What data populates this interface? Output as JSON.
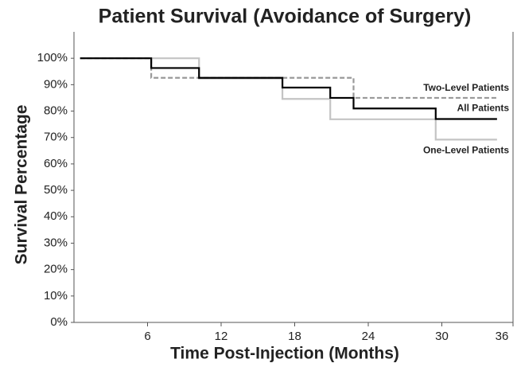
{
  "chart_data": {
    "type": "step",
    "title": "Patient Survival (Avoidance of Surgery)",
    "x_label": "Time Post-Injection (Months)",
    "y_label": "Survival Percentage",
    "xlim": [
      0,
      36
    ],
    "ylim": [
      0,
      110
    ],
    "xticks": [
      6,
      12,
      18,
      24,
      30,
      36
    ],
    "yticks": [
      {
        "value": 0,
        "label": "0%"
      },
      {
        "value": 10,
        "label": "10%"
      },
      {
        "value": 20,
        "label": "20%"
      },
      {
        "value": 30,
        "label": "30%"
      },
      {
        "value": 40,
        "label": "40%"
      },
      {
        "value": 50,
        "label": "50%"
      },
      {
        "value": 60,
        "label": "60%"
      },
      {
        "value": 70,
        "label": "70%"
      },
      {
        "value": 80,
        "label": "80%"
      },
      {
        "value": 90,
        "label": "90%"
      },
      {
        "value": 100,
        "label": "100%"
      }
    ],
    "grid": false,
    "series": [
      {
        "name": "One-Level Patients",
        "color": "#c4c4c4",
        "dash": false,
        "x": [
          0.5,
          10.2,
          17,
          20.9,
          29.5,
          34.5
        ],
        "values": [
          100,
          92.3,
          84.6,
          76.9,
          69.2,
          69.2
        ]
      },
      {
        "name": "Two-Level Patients",
        "color": "#999999",
        "dash": true,
        "x": [
          0.5,
          6.3,
          22.8,
          34.5
        ],
        "values": [
          100,
          92.6,
          85,
          85
        ]
      },
      {
        "name": "All Patients",
        "color": "#000000",
        "dash": false,
        "x": [
          0.5,
          6.3,
          10.2,
          17,
          20.9,
          22.8,
          29.5,
          34.5
        ],
        "values": [
          100,
          96.3,
          92.6,
          88.9,
          85,
          81,
          77,
          77
        ]
      }
    ]
  }
}
